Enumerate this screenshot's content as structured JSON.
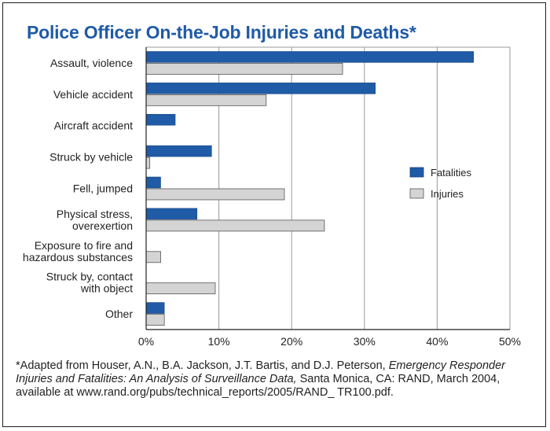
{
  "chart_data": {
    "type": "bar",
    "orientation": "horizontal",
    "title": "Police Officer On-the-Job Injuries and Deaths*",
    "categories": [
      [
        "Assault, violence"
      ],
      [
        "Vehicle accident"
      ],
      [
        "Aircraft accident"
      ],
      [
        "Struck by vehicle"
      ],
      [
        "Fell, jumped"
      ],
      [
        "Physical stress,",
        "overexertion"
      ],
      [
        "Exposure to fire and",
        "hazardous substances"
      ],
      [
        "Struck by, contact",
        "with object"
      ],
      [
        "Other"
      ]
    ],
    "series": [
      {
        "name": "Fatalities",
        "color": "#1f5ba6",
        "values": [
          45,
          31.5,
          4,
          9,
          2,
          7,
          0,
          0,
          2.5
        ]
      },
      {
        "name": "Injuries",
        "color": "#d4d4d4",
        "values": [
          27,
          16.5,
          0,
          0.5,
          19,
          24.5,
          2,
          9.5,
          2.5
        ]
      }
    ],
    "xlim": [
      0,
      50
    ],
    "xticks": [
      "0%",
      "10%",
      "20%",
      "30%",
      "40%",
      "50%"
    ],
    "grid": true,
    "legend_position": "right"
  },
  "footnote": {
    "part1": "*Adapted from Houser, A.N., B.A. Jackson, J.T. Bartis, and D.J. Peterson, ",
    "part2": "Emergency Responder Injuries and Fatalities: An Analysis of Surveillance Data,",
    "part3": " Santa Monica, CA: RAND, March 2004, available at www.rand.org/pubs/technical_reports/2005/RAND_ TR100.pdf."
  }
}
